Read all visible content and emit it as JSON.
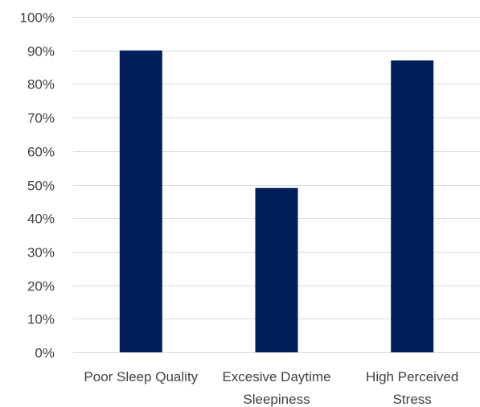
{
  "chart_data": {
    "type": "bar",
    "title": "",
    "xlabel": "",
    "ylabel": "",
    "categories": [
      [
        "Poor Sleep Quality"
      ],
      [
        "Excesive Daytime",
        "Sleepiness"
      ],
      [
        "High Perceived",
        "Stress"
      ]
    ],
    "values": [
      90,
      49,
      87
    ],
    "value_unit": "%",
    "ylim": [
      0,
      100
    ],
    "yticks": [
      0,
      10,
      20,
      30,
      40,
      50,
      60,
      70,
      80,
      90,
      100
    ],
    "ytick_labels": [
      "0%",
      "10%",
      "20%",
      "30%",
      "40%",
      "50%",
      "60%",
      "70%",
      "80%",
      "90%",
      "100%"
    ],
    "bar_color": "#001f5b",
    "grid": true,
    "legend": "none"
  }
}
